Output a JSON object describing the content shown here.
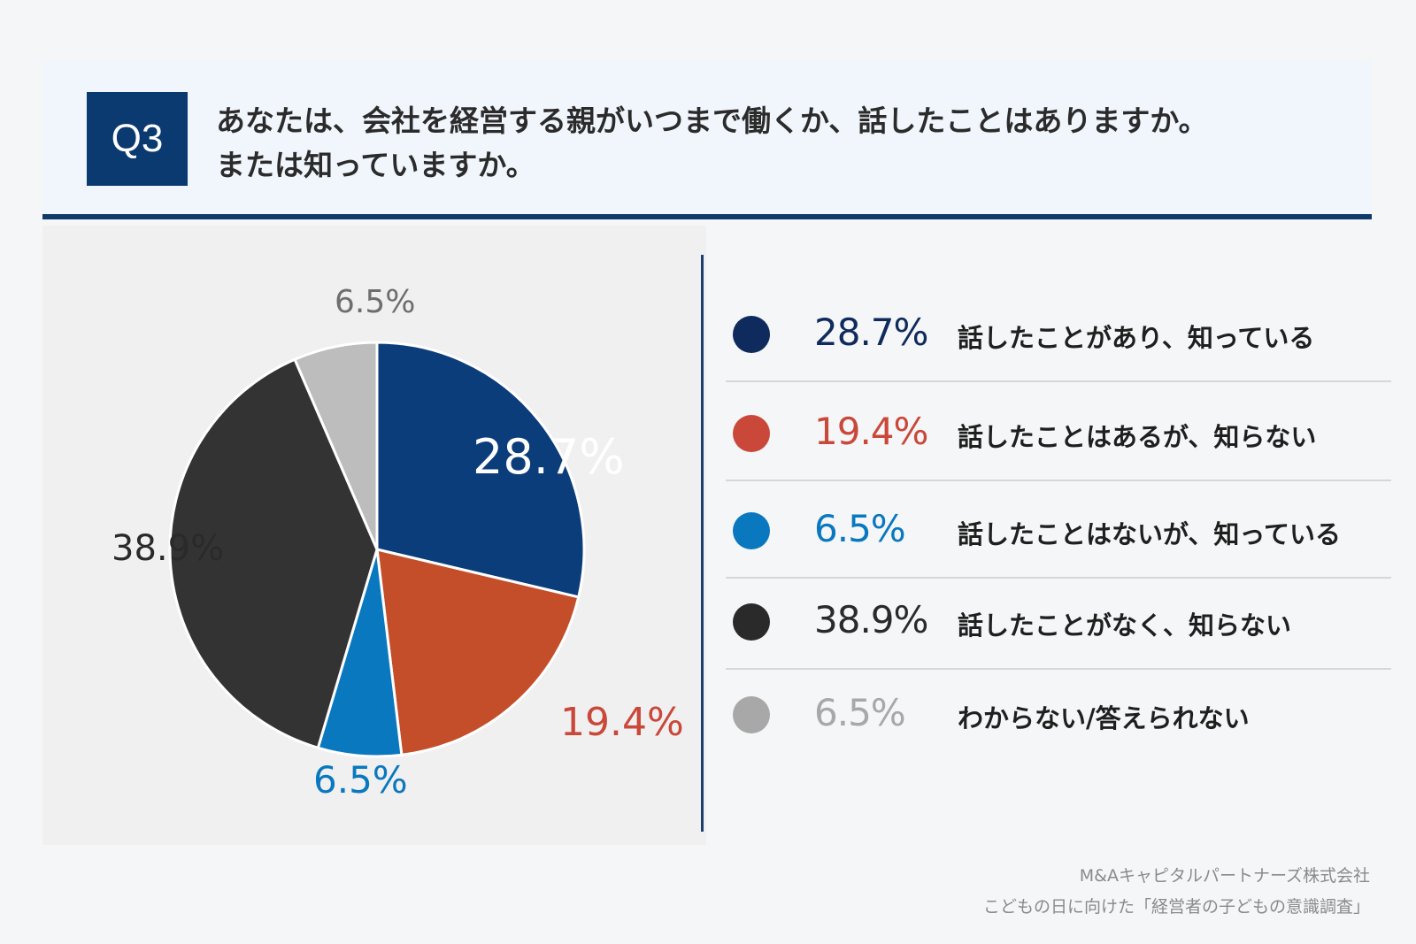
{
  "question": {
    "badge": "Q3",
    "line1": "あなたは、会社を経営する親がいつまで働くか、話したことはありますか。",
    "line2": "または知っていますか。"
  },
  "colors": {
    "navy": "#0b3d7a",
    "red": "#c44e2a",
    "blue": "#0a78bf",
    "dark": "#333333",
    "gray": "#b9b9b9"
  },
  "chart_data": {
    "type": "pie",
    "title": "あなたは、会社を経営する親がいつまで働くか、話したことはありますか。または知っていますか。",
    "slices": [
      {
        "label": "話したことがあり、知っている",
        "value": 28.7,
        "display": "28.7%",
        "color": "#0b3d7a",
        "legend_color": "#0f2a5c",
        "pie_label_color": "#ffffff"
      },
      {
        "label": "話したことはあるが、知らない",
        "value": 19.4,
        "display": "19.4%",
        "color": "#c44e2a",
        "legend_color": "#c9483a",
        "pie_label_color": "#c9483a"
      },
      {
        "label": "話したことはないが、知っている",
        "value": 6.5,
        "display": "6.5%",
        "color": "#0a78bf",
        "legend_color": "#0a78bf",
        "pie_label_color": "#0a78bf"
      },
      {
        "label": "話したことがなく、知らない",
        "value": 38.9,
        "display": "38.9%",
        "color": "#333333",
        "legend_color": "#2a2a2a",
        "pie_label_color": "#2a2a2a"
      },
      {
        "label": "わからない/答えられない",
        "value": 6.5,
        "display": "6.5%",
        "color": "#bdbdbd",
        "legend_color": "#a8a8a8",
        "pie_label_color": "#6e6e6e"
      }
    ],
    "start": "12 o'clock",
    "direction": "clockwise"
  },
  "legend": [
    {
      "pct": "28.7%",
      "label": "話したことがあり、知っている"
    },
    {
      "pct": "19.4%",
      "label": "話したことはあるが、知らない"
    },
    {
      "pct": "6.5%",
      "label": "話したことはないが、知っている"
    },
    {
      "pct": "38.9%",
      "label": "話したことがなく、知らない"
    },
    {
      "pct": "6.5%",
      "label": "わからない/答えられない"
    }
  ],
  "footer": {
    "company": "M&Aキャピタルパートナーズ株式会社",
    "survey": "こどもの日に向けた「経営者の子どもの意識調査」"
  }
}
